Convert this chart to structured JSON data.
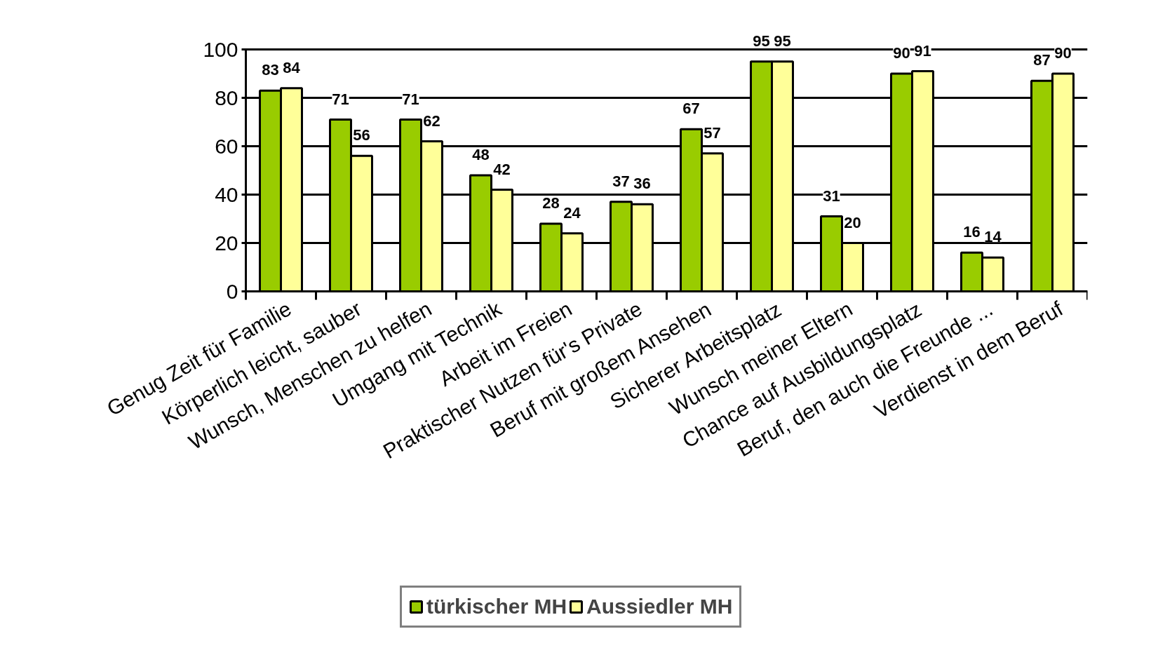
{
  "chart_data": {
    "type": "bar",
    "categories": [
      "Genug Zeit für Familie",
      "Körperlich leicht, sauber",
      "Wunsch, Menschen zu helfen",
      "Umgang mit Technik",
      "Arbeit im Freien",
      "Praktischer Nutzen für's Private",
      "Beruf mit großem Ansehen",
      "Sicherer Arbeitsplatz",
      "Wunsch meiner Eltern",
      "Chance auf Ausbildungsplatz",
      "Beruf, den auch die Freunde ...",
      "Verdienst in dem Beruf"
    ],
    "series": [
      {
        "name": "türkischer MH",
        "color": "#99cc00",
        "values": [
          83,
          71,
          71,
          48,
          28,
          37,
          67,
          95,
          31,
          90,
          16,
          87
        ]
      },
      {
        "name": "Aussiedler MH",
        "color": "#ffff99",
        "values": [
          84,
          56,
          62,
          42,
          24,
          36,
          57,
          95,
          20,
          91,
          14,
          90
        ]
      }
    ],
    "ylim": [
      0,
      100
    ],
    "yticks": [
      0,
      20,
      40,
      60,
      80,
      100
    ],
    "grid": "y",
    "legend": "bottom",
    "data_labels": true
  }
}
